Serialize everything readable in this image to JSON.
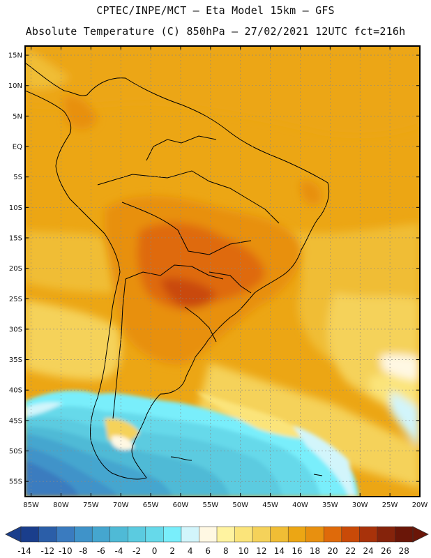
{
  "header": {
    "line1": "CPTEC/INPE/MCT –  Eta Model 15km – GFS",
    "line2": "Absolute Temperature (C) 850hPa – 27/02/2021 12UTC fct=216h"
  },
  "axes": {
    "lat_labels": [
      "15N",
      "10N",
      "5N",
      "EQ",
      "5S",
      "10S",
      "15S",
      "20S",
      "25S",
      "30S",
      "35S",
      "40S",
      "45S",
      "50S",
      "55S"
    ],
    "lat_values": [
      15,
      10,
      5,
      0,
      -5,
      -10,
      -15,
      -20,
      -25,
      -30,
      -35,
      -40,
      -45,
      -50,
      -55
    ],
    "lon_labels": [
      "85W",
      "80W",
      "75W",
      "70W",
      "65W",
      "60W",
      "55W",
      "50W",
      "45W",
      "40W",
      "35W",
      "30W",
      "25W",
      "20W"
    ],
    "lon_values": [
      -85,
      -80,
      -75,
      -70,
      -65,
      -60,
      -55,
      -50,
      -45,
      -40,
      -35,
      -30,
      -25,
      -20
    ],
    "lat_range": [
      -57.5,
      16.5
    ],
    "lon_range": [
      -86,
      -20
    ]
  },
  "colorbar": {
    "labels": [
      "-14",
      "-12",
      "-10",
      "-8",
      "-6",
      "-4",
      "-2",
      "0",
      "2",
      "4",
      "6",
      "8",
      "10",
      "12",
      "14",
      "16",
      "18",
      "20",
      "22",
      "24",
      "26",
      "28"
    ],
    "colors": [
      "#1a3e8c",
      "#2b5ea8",
      "#3a7bbf",
      "#3f93c9",
      "#45a6cf",
      "#4fbad6",
      "#5bcbe0",
      "#66d9ea",
      "#79eefb",
      "#d2f5fb",
      "#fff8e3",
      "#fff3a0",
      "#fbe47a",
      "#f5d25a",
      "#f0bd35",
      "#eca614",
      "#e8900f",
      "#df6a0a",
      "#c94a08",
      "#a8320a",
      "#85230b",
      "#6a1608"
    ]
  },
  "legend": {
    "unit": "Temperature (C)"
  }
}
